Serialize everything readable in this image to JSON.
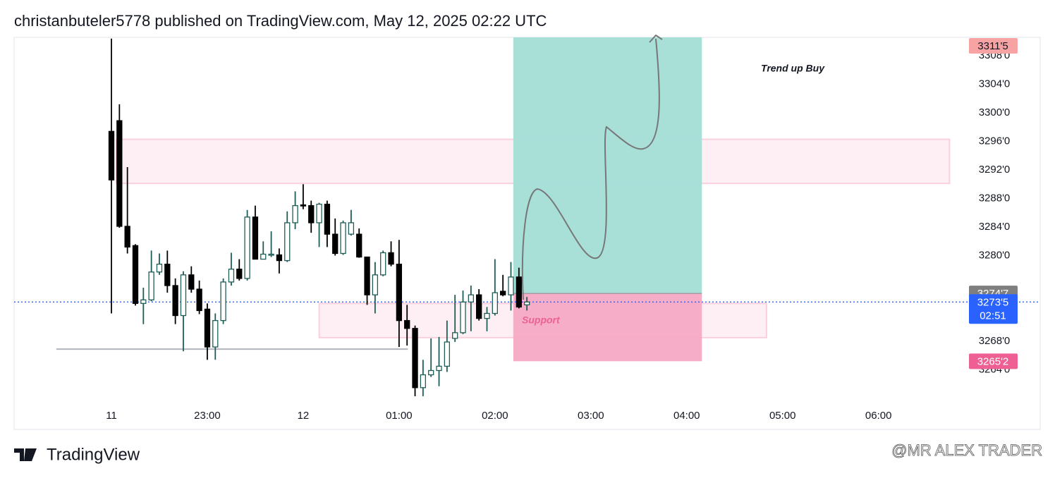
{
  "header": "christanbuteler5778 published on TradingView.com, May 12, 2025 02:22 UTC",
  "footer": {
    "brand": "TradingView",
    "watermark": "@MR ALEX TRADER"
  },
  "chart_data": {
    "type": "candlestick",
    "x": [
      0,
      1,
      2,
      3,
      4,
      5,
      6,
      7,
      8,
      9,
      10,
      11,
      12,
      13,
      14,
      15,
      16,
      17,
      18,
      19,
      20,
      21,
      22,
      23,
      24,
      25,
      26,
      27,
      28,
      29,
      30,
      31,
      32,
      33,
      34,
      35,
      36,
      37,
      38,
      39,
      40,
      41,
      42,
      43,
      44,
      45,
      46,
      47,
      48,
      49,
      50,
      51,
      52
    ],
    "open": [
      3297.4,
      3298.9,
      3284.1,
      3281.4,
      3273.3,
      3273.8,
      3277.7,
      3278.8,
      3275.8,
      3271.6,
      3277.3,
      3275.3,
      3272.5,
      3267.2,
      3270.9,
      3276.3,
      3278.1,
      3276.8,
      3285.4,
      3279.5,
      3280.1,
      3280.1,
      3279.3,
      3284.6,
      3287.1,
      3287.0,
      3284.6,
      3287.2,
      3283.0,
      3280.3,
      3283.0,
      3283.0,
      3279.8,
      3274.5,
      3277.3,
      3280.4,
      3278.8,
      3270.9,
      3269.8,
      3261.5,
      3263.3,
      3263.9,
      3264.5,
      3268.4,
      3269.2,
      3273.5,
      3274.5,
      3271.2,
      3271.9,
      3275.0,
      3274.5,
      3277.0,
      3273.1
    ],
    "high": [
      3310.4,
      3301.2,
      3292.4,
      3281.6,
      3275.5,
      3280.7,
      3280.3,
      3280.7,
      3276.8,
      3277.8,
      3278.5,
      3276.5,
      3273.3,
      3271.9,
      3276.8,
      3280.4,
      3279.5,
      3286.4,
      3287.0,
      3282.0,
      3283.4,
      3281.0,
      3286.2,
      3289.0,
      3290.0,
      3287.7,
      3287.4,
      3287.7,
      3285.2,
      3284.9,
      3286.4,
      3283.8,
      3279.8,
      3279.1,
      3280.7,
      3282.0,
      3282.2,
      3273.1,
      3270.2,
      3265.4,
      3268.4,
      3268.6,
      3270.9,
      3274.5,
      3275.1,
      3275.8,
      3275.3,
      3272.8,
      3279.5,
      3277.3,
      3279.1,
      3278.3,
      3274.2
    ],
    "low": [
      3271.9,
      3283.9,
      3280.3,
      3273.0,
      3270.4,
      3273.6,
      3277.3,
      3274.8,
      3270.4,
      3266.6,
      3274.8,
      3271.8,
      3265.4,
      3265.4,
      3270.4,
      3275.8,
      3276.5,
      3276.5,
      3279.5,
      3279.5,
      3279.8,
      3277.5,
      3279.1,
      3283.7,
      3286.5,
      3283.2,
      3281.2,
      3281.2,
      3280.0,
      3280.1,
      3282.8,
      3279.7,
      3273.1,
      3271.9,
      3277.1,
      3278.5,
      3267.2,
      3267.4,
      3260.3,
      3260.3,
      3263.0,
      3261.7,
      3263.7,
      3267.9,
      3269.0,
      3269.4,
      3270.9,
      3269.4,
      3271.6,
      3274.3,
      3272.3,
      3272.6,
      3272.3
    ],
    "close": [
      3290.6,
      3284.1,
      3281.2,
      3273.3,
      3273.8,
      3277.7,
      3278.8,
      3275.8,
      3271.6,
      3277.3,
      3275.3,
      3272.3,
      3267.2,
      3270.9,
      3276.3,
      3278.1,
      3276.8,
      3285.4,
      3279.5,
      3280.2,
      3280.2,
      3279.3,
      3284.6,
      3287.0,
      3287.0,
      3284.6,
      3287.2,
      3283.0,
      3280.3,
      3284.6,
      3284.6,
      3279.8,
      3274.5,
      3277.3,
      3280.4,
      3278.8,
      3270.9,
      3269.8,
      3261.5,
      3263.3,
      3263.9,
      3264.5,
      3267.9,
      3269.2,
      3273.5,
      3274.5,
      3271.2,
      3271.9,
      3274.8,
      3274.5,
      3277.0,
      3272.8,
      3273.5
    ],
    "up_color": "#1f5e58",
    "down_color": "#000000",
    "ylim": [
      3255.65,
      3310.57
    ],
    "yticks": [
      {
        "value": 3308,
        "label": "3308'0"
      },
      {
        "value": 3304,
        "label": "3304'0"
      },
      {
        "value": 3300,
        "label": "3300'0"
      },
      {
        "value": 3296,
        "label": "3296'0"
      },
      {
        "value": 3292,
        "label": "3292'0"
      },
      {
        "value": 3288,
        "label": "3288'0"
      },
      {
        "value": 3284,
        "label": "3284'0"
      },
      {
        "value": 3280,
        "label": "3280'0"
      },
      {
        "value": 3268,
        "label": "3268'0"
      },
      {
        "value": 3264,
        "label": "3264'0"
      }
    ],
    "xticks": [
      {
        "value": 0,
        "label": "11"
      },
      {
        "value": 12,
        "label": "23:00"
      },
      {
        "value": 24,
        "label": "12"
      },
      {
        "value": 36,
        "label": "01:00"
      },
      {
        "value": 48,
        "label": "02:00"
      },
      {
        "value": 60,
        "label": "03:00"
      },
      {
        "value": 72,
        "label": "04:00"
      },
      {
        "value": 84,
        "label": "05:00"
      },
      {
        "value": 96,
        "label": "06:00"
      }
    ],
    "position": {
      "start": 50.3,
      "end": 73.9,
      "target": 3311.5,
      "entry": 3274.7,
      "stop": 3265.2,
      "target_color": "#a3ded6",
      "stop_color": "#f5a9c4"
    },
    "zones": [
      {
        "top": 3296.3,
        "bottom": 3290.1,
        "start": 0.6,
        "end": 104.9
      },
      {
        "top": 3273.3,
        "bottom": 3268.5,
        "start": 26,
        "end": 82,
        "label": "Support"
      }
    ],
    "lines": [
      {
        "value": 3266.9,
        "start": -6.9,
        "end": 37.1
      }
    ],
    "annotation": "Trend up Buy",
    "price_labels": [
      {
        "value": 3311.5,
        "label": "3311'5",
        "color": "#f7a3a3",
        "text_color": "#131722"
      },
      {
        "value": 3274.7,
        "label": "3274'7",
        "color": "#7f7f7f",
        "text_color": "#ffffff"
      },
      {
        "value": 3265.2,
        "label": "3265'2",
        "color": "#ee6094",
        "text_color": "#ffffff"
      }
    ],
    "last_price": {
      "value": 3273.5,
      "label": "3273'5",
      "time": "02:51",
      "color": "#2962ff"
    }
  }
}
